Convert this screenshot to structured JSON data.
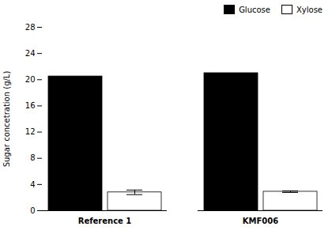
{
  "chart_data": {
    "type": "bar",
    "categories": [
      "Reference 1",
      "KMF006"
    ],
    "series": [
      {
        "name": "Glucose",
        "color": "#000000",
        "values": [
          20.5,
          21.0
        ]
      },
      {
        "name": "Xylose",
        "color": "#ffffff",
        "values": [
          2.8,
          2.9
        ],
        "errors": [
          0.35,
          0.12
        ]
      }
    ],
    "ylabel": "Sugar concetration (g/L)",
    "ylim": [
      0,
      28
    ],
    "yticks": [
      0,
      4,
      8,
      12,
      16,
      20,
      24,
      28
    ],
    "legend": "upper right",
    "grid": false
  }
}
